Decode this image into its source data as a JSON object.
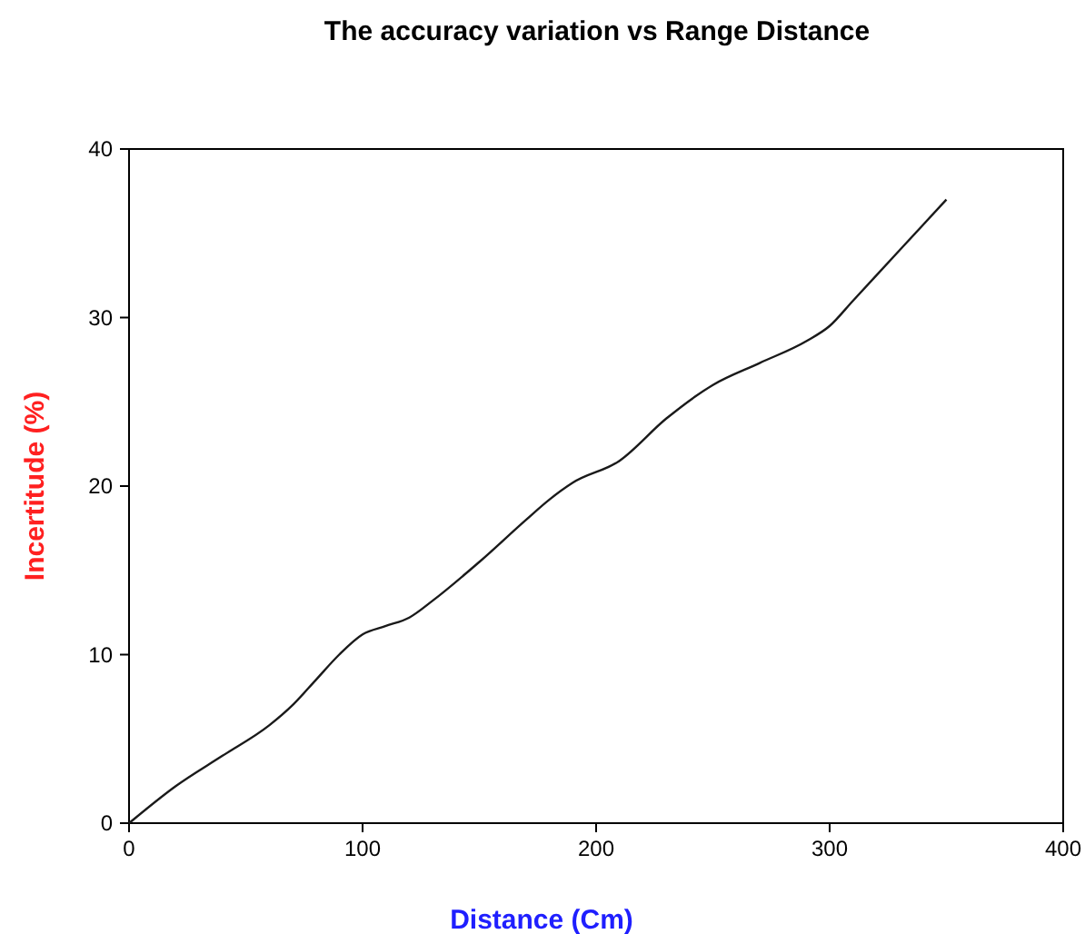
{
  "chart_data": {
    "type": "line",
    "title": "The accuracy variation vs Range Distance",
    "xlabel": "Distance (Cm)",
    "ylabel": "Incertitude (%)",
    "x": [
      0,
      20,
      40,
      60,
      70,
      80,
      90,
      100,
      110,
      120,
      130,
      150,
      170,
      180,
      190,
      210,
      230,
      250,
      270,
      290,
      300,
      310,
      330,
      350
    ],
    "series": [
      {
        "color": "#1a1a1a",
        "values": [
          0,
          2.2,
          4,
          5.8,
          7,
          8.5,
          10,
          11.2,
          11.7,
          12.2,
          13.2,
          15.5,
          18,
          19.2,
          20.2,
          21.5,
          24,
          26,
          27.3,
          28.6,
          29.5,
          31,
          34,
          37
        ]
      }
    ],
    "xlim": [
      0,
      400
    ],
    "xticks": [
      0,
      100,
      200,
      300,
      400
    ],
    "ylim": [
      0,
      40
    ],
    "yticks": [
      0,
      10,
      20,
      30,
      40
    ],
    "grid": false,
    "marker": "none",
    "line_style": "solid"
  }
}
